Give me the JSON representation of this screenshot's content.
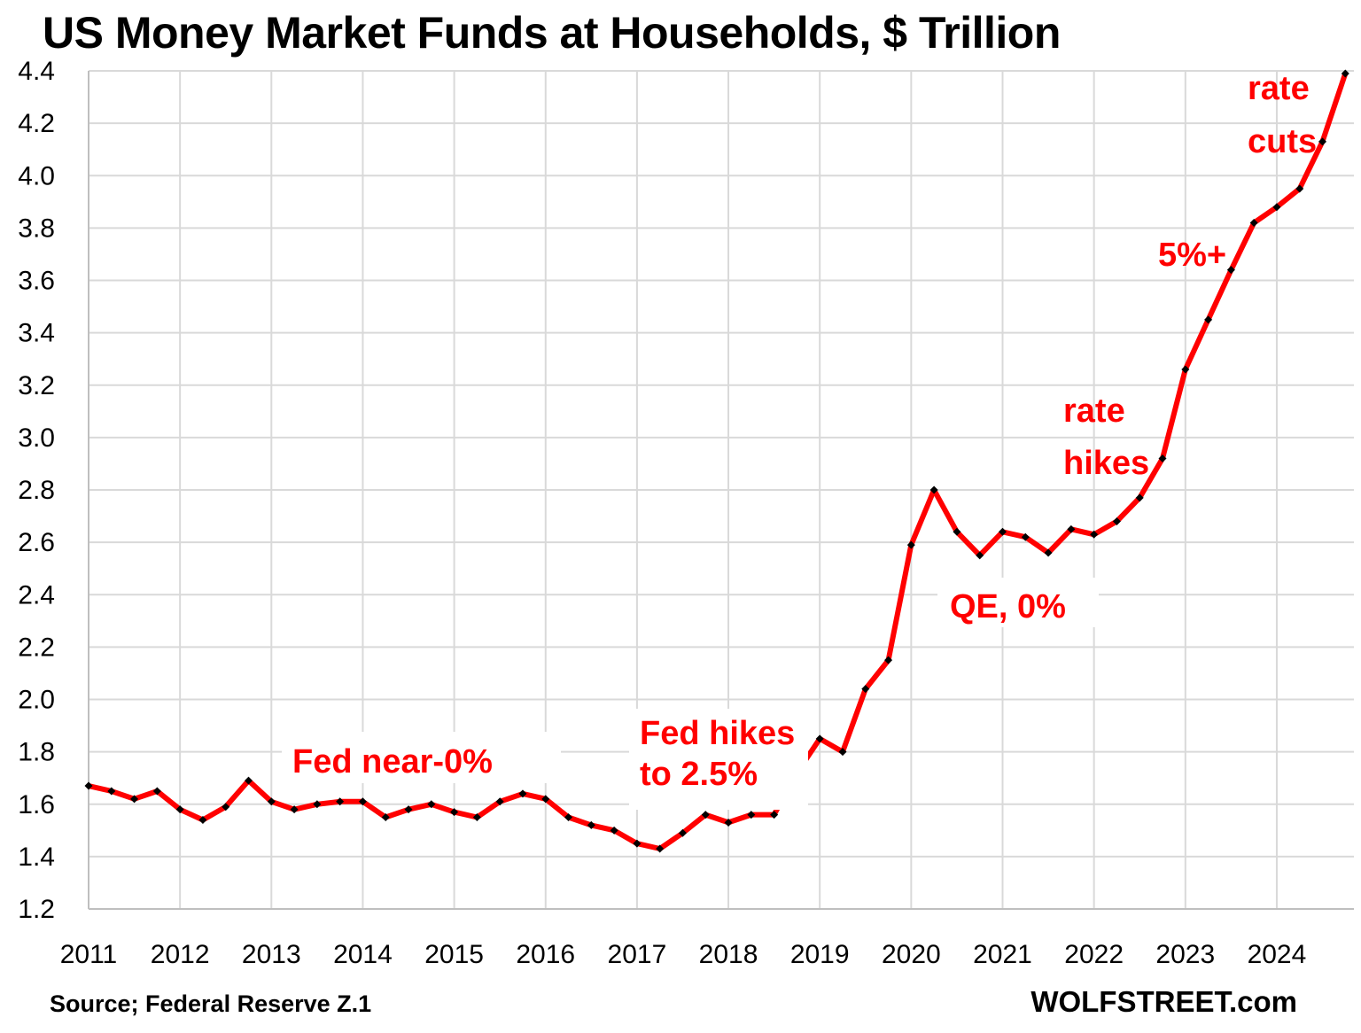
{
  "chart_data": {
    "type": "line",
    "title": "US Money Market Funds at Households, $ Trillion",
    "xlabel": "",
    "ylabel": "",
    "ylim": [
      1.2,
      4.4
    ],
    "yticks": [
      "1.2",
      "1.4",
      "1.6",
      "1.8",
      "2.0",
      "2.2",
      "2.4",
      "2.6",
      "2.8",
      "3.0",
      "3.2",
      "3.4",
      "3.6",
      "3.8",
      "4.0",
      "4.2",
      "4.4"
    ],
    "xticks": [
      "2011",
      "2012",
      "2013",
      "2014",
      "2015",
      "2016",
      "2017",
      "2018",
      "2019",
      "2020",
      "2021",
      "2022",
      "2023",
      "2024"
    ],
    "grid": true,
    "series_color": "#ff0000",
    "marker_color": "#000000",
    "series": [
      {
        "x_start": "2011 Q1",
        "frequency": "quarterly",
        "values": [
          1.67,
          1.65,
          1.62,
          1.65,
          1.58,
          1.54,
          1.59,
          1.69,
          1.61,
          1.58,
          1.6,
          1.61,
          1.61,
          1.55,
          1.58,
          1.6,
          1.57,
          1.55,
          1.61,
          1.64,
          1.62,
          1.55,
          1.52,
          1.5,
          1.45,
          1.43,
          1.49,
          1.56,
          1.53,
          1.56,
          1.56,
          1.72,
          1.85,
          1.8,
          2.04,
          2.15,
          2.59,
          2.8,
          2.64,
          2.55,
          2.64,
          2.62,
          2.56,
          2.65,
          2.63,
          2.68,
          2.77,
          2.92,
          3.26,
          3.45,
          3.64,
          3.82,
          3.88,
          3.95,
          4.13,
          4.39
        ]
      }
    ],
    "annotations": [
      {
        "lines": [
          "Fed near-0%"
        ]
      },
      {
        "lines": [
          "Fed hikes",
          "to 2.5%"
        ]
      },
      {
        "lines": [
          "QE, 0%"
        ]
      },
      {
        "lines": [
          "rate",
          "hikes"
        ]
      },
      {
        "lines": [
          "5%+"
        ]
      },
      {
        "lines": [
          "rate",
          "cuts"
        ]
      }
    ]
  },
  "footer": {
    "source": "Source; Federal Reserve Z.1",
    "brand": "WOLFSTREET.com"
  }
}
